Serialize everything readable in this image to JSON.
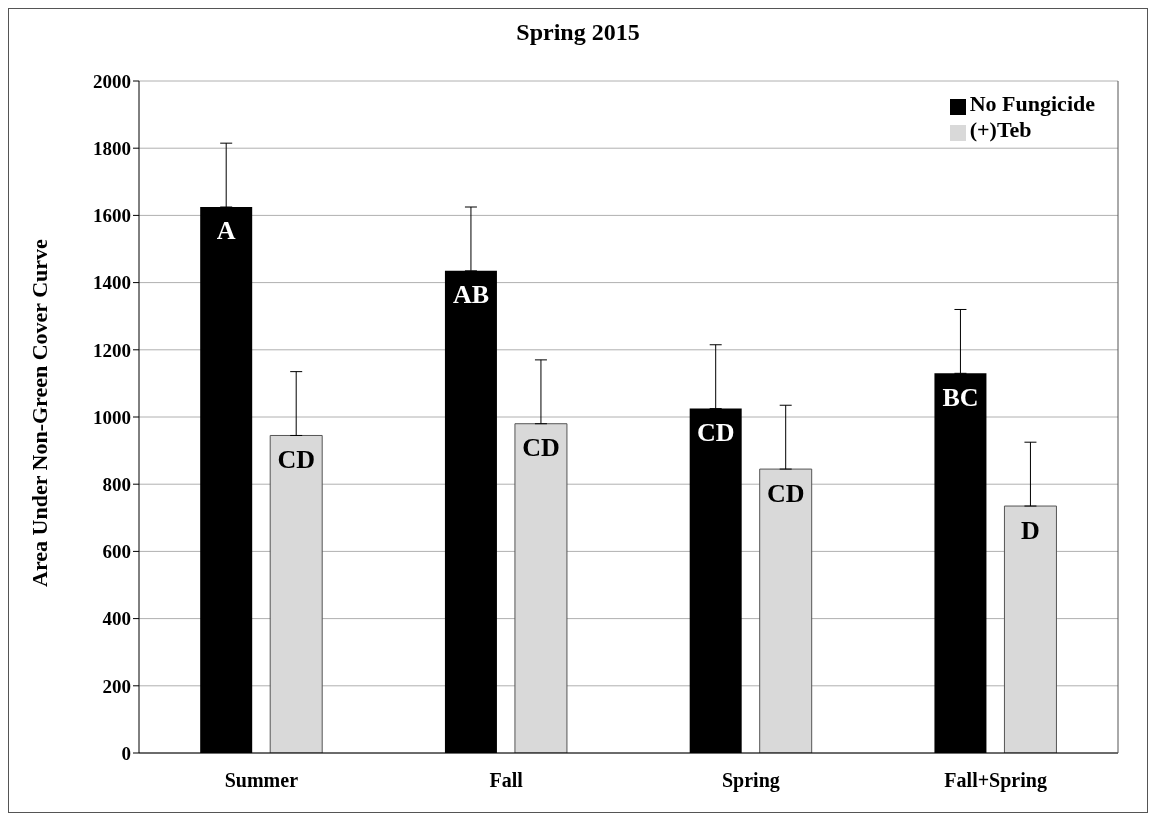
{
  "chart_data": {
    "type": "bar",
    "title": "Spring 2015",
    "ylabel": "Area Under Non-Green Cover Curve",
    "categories": [
      "Summer",
      "Fall",
      "Spring",
      "Fall+Spring"
    ],
    "series": [
      {
        "name": "No Fungicide",
        "color": "#000000",
        "values": [
          1625,
          1435,
          1025,
          1130
        ],
        "errors": [
          [
            1625,
            1815
          ],
          [
            1435,
            1625
          ],
          [
            1025,
            1215
          ],
          [
            1130,
            1320
          ]
        ],
        "value_labels": [
          "A",
          "AB",
          "CD",
          "BC"
        ]
      },
      {
        "name": "(+)Teb",
        "color": "#d9d9d9",
        "values": [
          945,
          980,
          845,
          735
        ],
        "errors": [
          [
            945,
            1135
          ],
          [
            980,
            1170
          ],
          [
            845,
            1035
          ],
          [
            735,
            925
          ]
        ],
        "value_labels": [
          "CD",
          "CD",
          "CD",
          "D"
        ]
      }
    ],
    "ylim": [
      0,
      2000
    ],
    "yticks": [
      0,
      200,
      400,
      600,
      800,
      1000,
      1200,
      1400,
      1600,
      1800,
      2000
    ],
    "grid": "y",
    "legend": "top right"
  }
}
